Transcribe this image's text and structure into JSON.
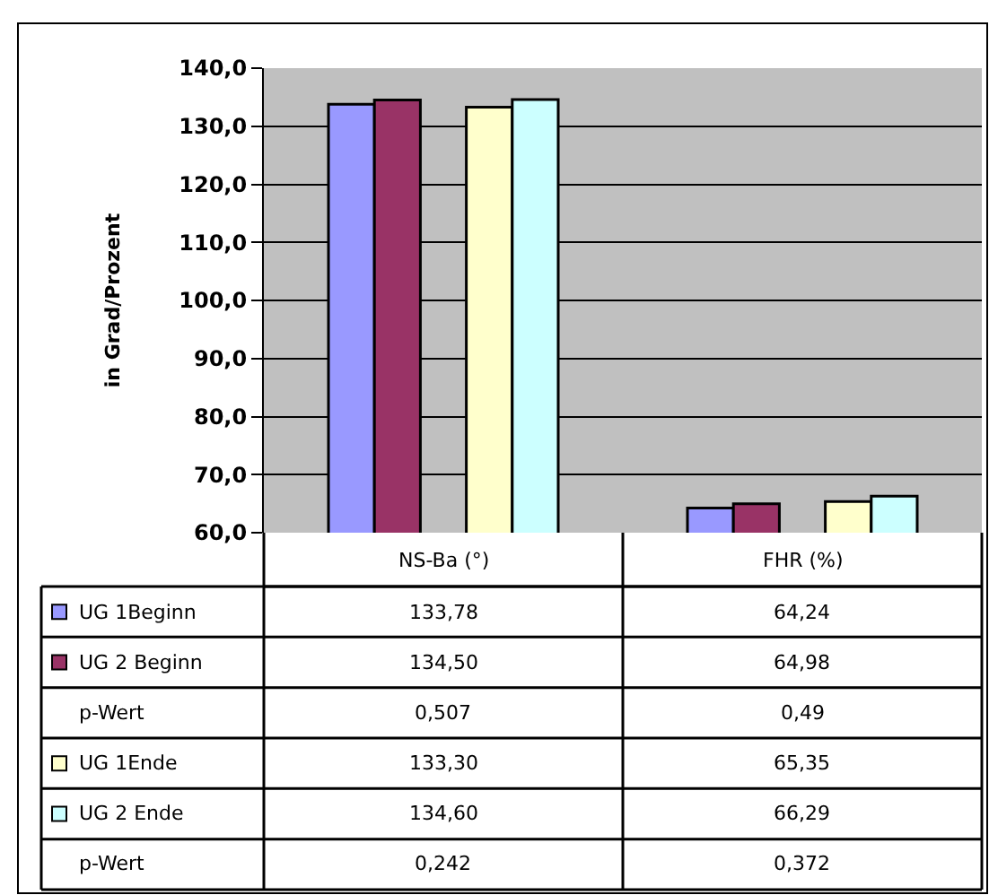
{
  "chart_data": {
    "type": "bar",
    "ylabel": "in Grad/Prozent",
    "categories": [
      "NS-Ba (°)",
      "FHR (%)"
    ],
    "series": [
      {
        "name": "UG 1Beginn",
        "color": "#9999ff",
        "values": [
          133.78,
          64.24
        ],
        "value_labels": [
          "133,78",
          "64,24"
        ]
      },
      {
        "name": "UG 2 Beginn",
        "color": "#993366",
        "values": [
          134.5,
          64.98
        ],
        "value_labels": [
          "134,50",
          "64,98"
        ]
      },
      {
        "name": "UG 1Ende",
        "color": "#ffffcc",
        "values": [
          133.3,
          65.35
        ],
        "value_labels": [
          "133,30",
          "65,35"
        ]
      },
      {
        "name": "UG 2 Ende",
        "color": "#ccffff",
        "values": [
          134.6,
          66.29
        ],
        "value_labels": [
          "134,60",
          "66,29"
        ]
      }
    ],
    "annotations": [
      "p-Wert",
      "0,507",
      "0,49",
      "p-Wert",
      "0,242",
      "0,372"
    ],
    "ylim": [
      60,
      140
    ],
    "yticks": [
      {
        "value": 60,
        "label": "60,0"
      },
      {
        "value": 70,
        "label": "70,0"
      },
      {
        "value": 80,
        "label": "80,0"
      },
      {
        "value": 90,
        "label": "90,0"
      },
      {
        "value": 100,
        "label": "100,0"
      },
      {
        "value": 110,
        "label": "110,0"
      },
      {
        "value": 120,
        "label": "120,0"
      },
      {
        "value": 130,
        "label": "130,0"
      },
      {
        "value": 140,
        "label": "140,0"
      }
    ],
    "grid": "y",
    "legend": "bottom"
  }
}
